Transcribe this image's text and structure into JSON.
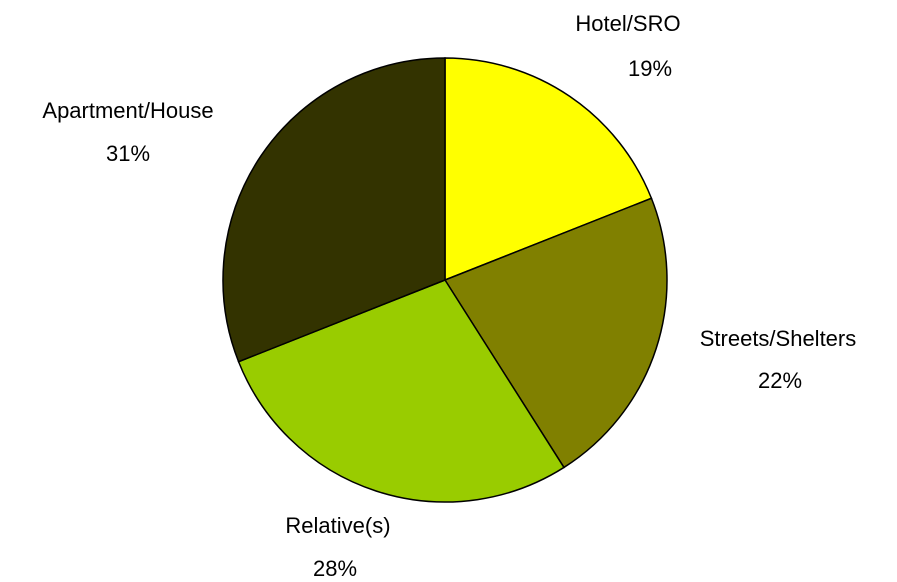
{
  "chart_data": {
    "type": "pie",
    "categories": [
      "Hotel/SRO",
      "Streets/Shelters",
      "Relative(s)",
      "Apartment/House"
    ],
    "values": [
      19,
      22,
      28,
      31
    ],
    "value_labels": [
      "19%",
      "22%",
      "28%",
      "31%"
    ],
    "colors": [
      "#ffff00",
      "#808000",
      "#99cc00",
      "#333300"
    ]
  }
}
